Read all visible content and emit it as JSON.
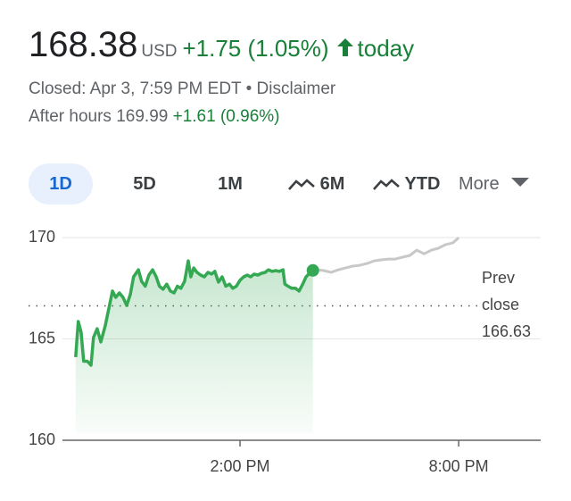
{
  "quote": {
    "price": "168.38",
    "currency": "USD",
    "change": "+1.75 (1.05%)",
    "period": "today",
    "status": "Closed: Apr 3, 7:59 PM EDT",
    "separator": "•",
    "disclaimer": "Disclaimer",
    "after_hours_label": "After hours 169.99",
    "after_hours_change": "+1.61 (0.96%)"
  },
  "tabs": [
    "1D",
    "5D",
    "1M",
    "6M",
    "YTD",
    "More"
  ],
  "chart_data": {
    "type": "line",
    "xlim": [
      9.25,
      22.25
    ],
    "xticks": [
      {
        "value": 14,
        "label": "2:00 PM"
      },
      {
        "value": 20,
        "label": "8:00 PM"
      }
    ],
    "ylim": [
      160,
      170
    ],
    "yticks": [
      160,
      165,
      170
    ],
    "grid": true,
    "prev_close": {
      "label_lines": [
        "Prev",
        "close"
      ],
      "value": 166.63
    },
    "series": [
      {
        "color": "#34a853",
        "fill": true,
        "end_marker": true,
        "x": [
          9.49,
          9.56,
          9.64,
          9.71,
          9.81,
          9.91,
          9.98,
          10.08,
          10.18,
          10.3,
          10.4,
          10.5,
          10.59,
          10.69,
          10.79,
          10.89,
          10.99,
          11.08,
          11.21,
          11.3,
          11.4,
          11.5,
          11.6,
          11.7,
          11.79,
          11.89,
          11.99,
          12.09,
          12.19,
          12.28,
          12.38,
          12.48,
          12.58,
          12.65,
          12.73,
          12.82,
          12.92,
          13.02,
          13.12,
          13.22,
          13.31,
          13.41,
          13.51,
          13.61,
          13.71,
          13.8,
          13.9,
          14.0,
          14.1,
          14.2,
          14.29,
          14.39,
          14.49,
          14.59,
          14.69,
          14.78,
          14.88,
          14.98,
          15.08,
          15.18,
          15.23,
          15.32,
          15.42,
          15.52,
          15.62,
          15.72,
          15.81,
          15.91,
          16.0
        ],
        "values": [
          164.1,
          165.86,
          165.33,
          163.9,
          163.9,
          163.7,
          165.07,
          165.5,
          164.85,
          165.64,
          166.5,
          167.36,
          167.05,
          167.27,
          167.05,
          166.65,
          167.2,
          168.06,
          168.41,
          167.84,
          167.6,
          168.15,
          168.41,
          168.06,
          167.6,
          167.45,
          167.7,
          167.36,
          167.27,
          167.6,
          167.5,
          167.84,
          168.85,
          168.06,
          168.5,
          168.28,
          168.15,
          168.06,
          168.28,
          168.2,
          168.33,
          167.8,
          168.06,
          167.6,
          167.7,
          167.5,
          167.6,
          167.89,
          168.06,
          168.15,
          168.06,
          168.2,
          168.15,
          168.24,
          168.28,
          168.41,
          168.33,
          168.37,
          168.33,
          168.41,
          167.7,
          167.6,
          167.5,
          167.5,
          167.36,
          167.7,
          168.06,
          168.24,
          168.38
        ]
      },
      {
        "color": "#c8c8c8",
        "fill": false,
        "end_marker": false,
        "x": [
          16.0,
          16.13,
          16.3,
          16.5,
          16.7,
          16.89,
          17.09,
          17.28,
          17.48,
          17.68,
          17.87,
          18.07,
          18.26,
          18.46,
          18.66,
          18.85,
          19.05,
          19.25,
          19.44,
          19.64,
          19.84,
          20.0
        ],
        "values": [
          168.38,
          168.41,
          168.37,
          168.28,
          168.41,
          168.5,
          168.59,
          168.63,
          168.72,
          168.85,
          168.9,
          168.94,
          168.94,
          169.03,
          169.12,
          169.38,
          169.2,
          169.38,
          169.47,
          169.65,
          169.74,
          169.99
        ]
      }
    ]
  }
}
